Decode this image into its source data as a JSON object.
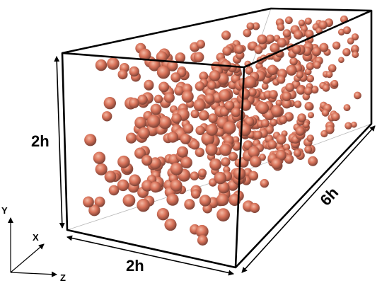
{
  "labels": {
    "height": "2h",
    "width": "2h",
    "length": "6h"
  },
  "axes": {
    "y": "Y",
    "x": "X",
    "z": "Z"
  }
}
